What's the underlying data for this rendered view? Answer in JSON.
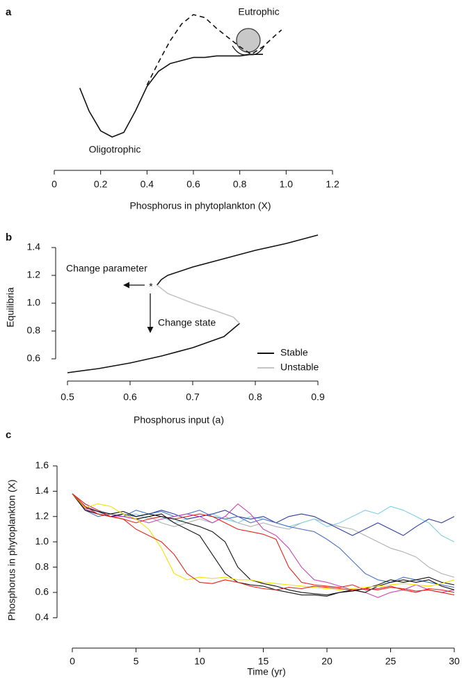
{
  "chart_data": [
    {
      "type": "line",
      "panel_label": "a",
      "xlabel": "Phosphorus in phytoplankton (X)",
      "annotations": [
        "Oligotrophic",
        "Eutrophic"
      ],
      "xlim": [
        0,
        1.2
      ],
      "ylim": [
        0,
        1
      ],
      "xticks": [
        0,
        0.2,
        0.4,
        0.6,
        0.8,
        {
          "value": 1,
          "label": "1.0"
        },
        1.2
      ],
      "x": [
        0.11,
        0.15,
        0.2,
        0.25,
        0.3,
        0.35,
        0.4,
        0.45,
        0.5,
        0.55,
        0.6,
        0.65,
        0.7,
        0.75,
        0.8,
        0.85,
        0.9,
        0.95,
        0.98
      ],
      "series": [
        {
          "color": "#111111",
          "dashed": false,
          "values": [
            0.47,
            0.32,
            0.19,
            0.15,
            0.18,
            0.32,
            0.48,
            0.58,
            0.63,
            0.65,
            0.67,
            0.67,
            0.68,
            0.68,
            0.68,
            0.69,
            0.69,
            null,
            null
          ]
        },
        {
          "color": "#111111",
          "dashed": true,
          "values": [
            null,
            null,
            null,
            null,
            null,
            null,
            0.49,
            0.64,
            0.78,
            0.89,
            0.95,
            0.93,
            0.86,
            0.8,
            0.74,
            0.69,
            0.74,
            0.81,
            0.85
          ]
        }
      ]
    },
    {
      "type": "line",
      "panel_label": "b",
      "xlabel": "Phosphorus input (a)",
      "ylabel": "Equilibria",
      "annotations": [
        "Change parameter",
        "*",
        "Change state"
      ],
      "xlim": [
        0.48,
        0.92
      ],
      "ylim": [
        0.44,
        1.5
      ],
      "xticks": [
        0.5,
        0.6,
        0.7,
        0.8,
        0.9
      ],
      "yticks": [
        0.6,
        0.8,
        {
          "value": 1,
          "label": "1.0"
        },
        1.2,
        1.4
      ],
      "legend": "lower right",
      "series": [
        {
          "name": "Stable",
          "color": "#111111",
          "x": [
            0.5,
            0.55,
            0.6,
            0.65,
            0.7,
            0.75,
            0.775,
            null,
            0.643,
            0.65,
            0.66,
            0.7,
            0.75,
            0.8,
            0.85,
            0.9
          ],
          "values": [
            0.5,
            0.53,
            0.57,
            0.62,
            0.68,
            0.76,
            0.855,
            null,
            1.13,
            1.17,
            1.2,
            1.26,
            1.32,
            1.38,
            1.43,
            1.49
          ]
        },
        {
          "name": "Unstable",
          "color": "#c4c4c4",
          "x": [
            0.643,
            0.66,
            0.7,
            0.74,
            0.765,
            0.775
          ],
          "values": [
            1.13,
            1.07,
            1.0,
            0.94,
            0.9,
            0.855
          ]
        }
      ]
    },
    {
      "type": "line",
      "panel_label": "c",
      "xlabel": "Time (yr)",
      "ylabel": "Phosphorus in phytoplankton (X)",
      "xlim": [
        -1.2,
        30.6
      ],
      "ylim": [
        0.16,
        1.71
      ],
      "xticks": [
        0,
        5,
        10,
        15,
        20,
        25,
        30
      ],
      "yticks": [
        0.4,
        0.6,
        0.8,
        {
          "value": 1,
          "label": "1.0"
        },
        1.2,
        1.4,
        1.6
      ],
      "x": [
        0,
        1,
        2,
        3,
        4,
        5,
        6,
        7,
        8,
        9,
        10,
        11,
        12,
        13,
        14,
        15,
        16,
        17,
        18,
        19,
        20,
        21,
        22,
        23,
        24,
        25,
        26,
        27,
        28,
        29,
        30
      ],
      "series": [
        {
          "color": "#b0b0b0",
          "values": [
            1.38,
            1.3,
            1.25,
            1.22,
            1.2,
            1.18,
            1.2,
            1.15,
            1.12,
            1.15,
            1.18,
            1.15,
            1.2,
            1.15,
            1.12,
            1.15,
            1.12,
            1.1,
            1.15,
            1.18,
            1.15,
            1.12,
            1.1,
            1.05,
            1.0,
            0.95,
            0.92,
            0.88,
            0.8,
            0.75,
            0.72
          ]
        },
        {
          "color": "#7fd0e8",
          "values": [
            1.38,
            1.3,
            1.25,
            1.22,
            1.2,
            1.22,
            1.18,
            1.2,
            1.15,
            1.18,
            1.2,
            1.22,
            1.18,
            1.15,
            1.2,
            1.18,
            1.15,
            1.12,
            1.15,
            1.18,
            1.12,
            1.15,
            1.2,
            1.25,
            1.22,
            1.28,
            1.25,
            1.2,
            1.15,
            1.05,
            1.0
          ]
        },
        {
          "color": "#2e3f9e",
          "values": [
            1.38,
            1.28,
            1.24,
            1.2,
            1.22,
            1.2,
            1.22,
            1.25,
            1.22,
            1.18,
            1.2,
            1.22,
            1.25,
            1.2,
            1.18,
            1.2,
            1.15,
            1.2,
            1.22,
            1.2,
            1.15,
            1.1,
            1.05,
            1.1,
            1.15,
            1.1,
            1.05,
            1.12,
            1.18,
            1.15,
            1.2
          ]
        },
        {
          "color": "#4a72c8",
          "values": [
            1.38,
            1.25,
            1.2,
            1.22,
            1.2,
            1.25,
            1.22,
            1.24,
            1.2,
            1.22,
            1.25,
            1.2,
            1.18,
            1.2,
            1.15,
            1.18,
            1.15,
            1.12,
            1.1,
            1.08,
            1.02,
            0.95,
            0.85,
            0.75,
            0.7,
            0.68,
            0.72,
            0.7,
            0.68,
            0.66,
            0.64
          ]
        },
        {
          "color": "#c944b8",
          "values": [
            1.38,
            1.26,
            1.22,
            1.2,
            1.2,
            1.18,
            1.15,
            1.18,
            1.2,
            1.22,
            1.2,
            1.15,
            1.2,
            1.3,
            1.22,
            1.1,
            1.05,
            0.95,
            0.8,
            0.7,
            0.68,
            0.65,
            0.62,
            0.6,
            0.56,
            0.6,
            0.62,
            0.66,
            0.62,
            0.6,
            0.62
          ]
        },
        {
          "color": "#e8231a",
          "values": [
            1.38,
            1.3,
            1.25,
            1.2,
            1.18,
            1.15,
            1.18,
            1.2,
            1.18,
            1.2,
            1.22,
            1.2,
            1.15,
            1.1,
            1.08,
            1.06,
            1.02,
            0.8,
            0.68,
            0.66,
            0.65,
            0.64,
            0.66,
            0.62,
            0.63,
            0.65,
            0.62,
            0.6,
            0.63,
            0.62,
            0.6
          ]
        },
        {
          "color": "#111111",
          "values": [
            1.38,
            1.27,
            1.24,
            1.22,
            1.24,
            1.2,
            1.22,
            1.2,
            1.18,
            1.15,
            1.12,
            1.08,
            1.0,
            0.8,
            0.7,
            0.67,
            0.65,
            0.62,
            0.6,
            0.59,
            0.58,
            0.6,
            0.61,
            0.63,
            0.66,
            0.7,
            0.68,
            0.7,
            0.72,
            0.68,
            0.66
          ]
        },
        {
          "color": "#111111",
          "values": [
            1.38,
            1.25,
            1.22,
            1.2,
            1.22,
            1.18,
            1.2,
            1.22,
            1.15,
            1.1,
            1.05,
            0.9,
            0.75,
            0.68,
            0.66,
            0.65,
            0.62,
            0.6,
            0.58,
            0.58,
            0.57,
            0.6,
            0.62,
            0.6,
            0.65,
            0.68,
            0.7,
            0.68,
            0.7,
            0.65,
            0.62
          ]
        },
        {
          "color": "#f2e200",
          "values": [
            1.38,
            1.27,
            1.3,
            1.28,
            1.22,
            1.18,
            1.1,
            0.95,
            0.75,
            0.7,
            0.72,
            0.71,
            0.72,
            0.7,
            0.7,
            0.68,
            0.67,
            0.66,
            0.65,
            0.64,
            0.63,
            0.62,
            0.63,
            0.64,
            0.65,
            0.66,
            0.67,
            0.66,
            0.65,
            0.67,
            0.7
          ]
        },
        {
          "color": "#e8231a",
          "values": [
            1.38,
            1.28,
            1.22,
            1.2,
            1.18,
            1.1,
            1.05,
            1.0,
            0.9,
            0.75,
            0.68,
            0.67,
            0.7,
            0.68,
            0.65,
            0.63,
            0.62,
            0.64,
            0.63,
            0.65,
            0.64,
            0.63,
            0.62,
            0.63,
            0.62,
            0.64,
            0.63,
            0.61,
            0.62,
            0.6,
            0.58
          ]
        }
      ]
    }
  ]
}
